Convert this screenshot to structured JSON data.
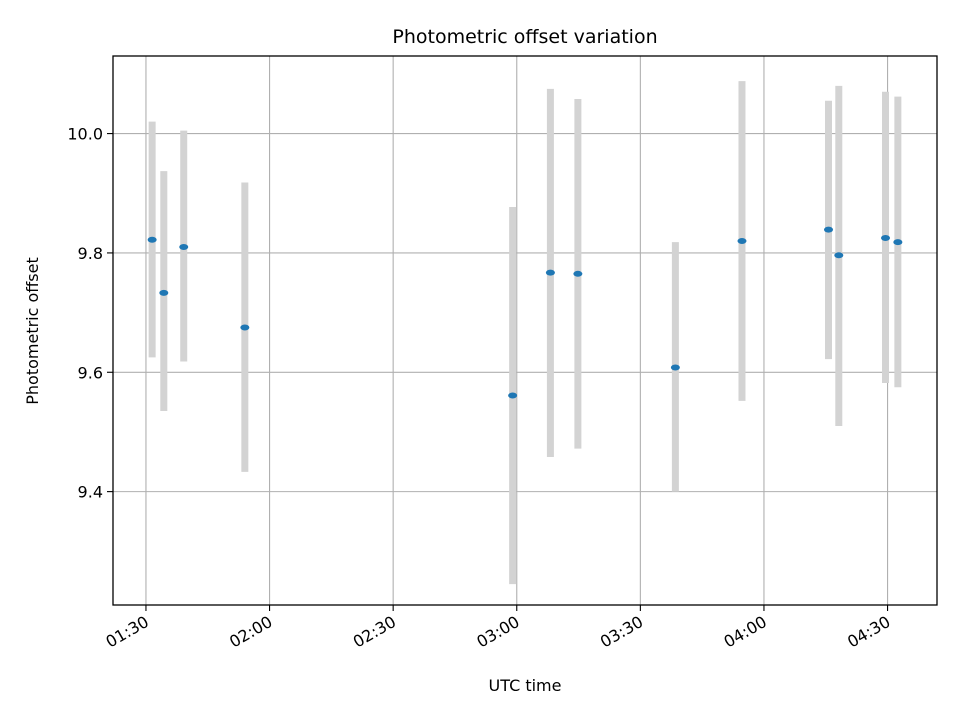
{
  "chart_data": {
    "type": "scatter",
    "title": "Photometric offset variation",
    "xlabel": "UTC time",
    "ylabel": "Photometric offset",
    "x_ticks": [
      "01:30",
      "02:00",
      "02:30",
      "03:00",
      "03:30",
      "04:00",
      "04:30"
    ],
    "y_ticks": [
      "9.4",
      "9.6",
      "9.8",
      "10.0"
    ],
    "grid": true,
    "xlim": [
      "01:22",
      "04:42"
    ],
    "ylim": [
      9.21,
      10.13
    ],
    "colors": {
      "point": "#1f77b4",
      "errorbar": "#d3d3d3",
      "grid": "#b0b0b0"
    },
    "points": [
      {
        "x": "01:31:30",
        "y": 9.822,
        "yerr_low": 9.625,
        "yerr_high": 10.02
      },
      {
        "x": "01:34:20",
        "y": 9.733,
        "yerr_low": 9.535,
        "yerr_high": 9.937
      },
      {
        "x": "01:39:10",
        "y": 9.81,
        "yerr_low": 9.618,
        "yerr_high": 10.005
      },
      {
        "x": "01:54:00",
        "y": 9.675,
        "yerr_low": 9.433,
        "yerr_high": 9.918
      },
      {
        "x": "02:59:00",
        "y": 9.561,
        "yerr_low": 9.245,
        "yerr_high": 9.877
      },
      {
        "x": "03:08:10",
        "y": 9.767,
        "yerr_low": 9.458,
        "yerr_high": 10.075
      },
      {
        "x": "03:14:50",
        "y": 9.765,
        "yerr_low": 9.472,
        "yerr_high": 10.058
      },
      {
        "x": "03:38:30",
        "y": 9.608,
        "yerr_low": 9.4,
        "yerr_high": 9.818
      },
      {
        "x": "03:54:40",
        "y": 9.82,
        "yerr_low": 9.552,
        "yerr_high": 10.088
      },
      {
        "x": "04:15:40",
        "y": 9.839,
        "yerr_low": 9.622,
        "yerr_high": 10.055
      },
      {
        "x": "04:18:10",
        "y": 9.796,
        "yerr_low": 9.51,
        "yerr_high": 10.08
      },
      {
        "x": "04:29:30",
        "y": 9.825,
        "yerr_low": 9.582,
        "yerr_high": 10.07
      },
      {
        "x": "04:32:30",
        "y": 9.818,
        "yerr_low": 9.575,
        "yerr_high": 10.062
      }
    ]
  }
}
